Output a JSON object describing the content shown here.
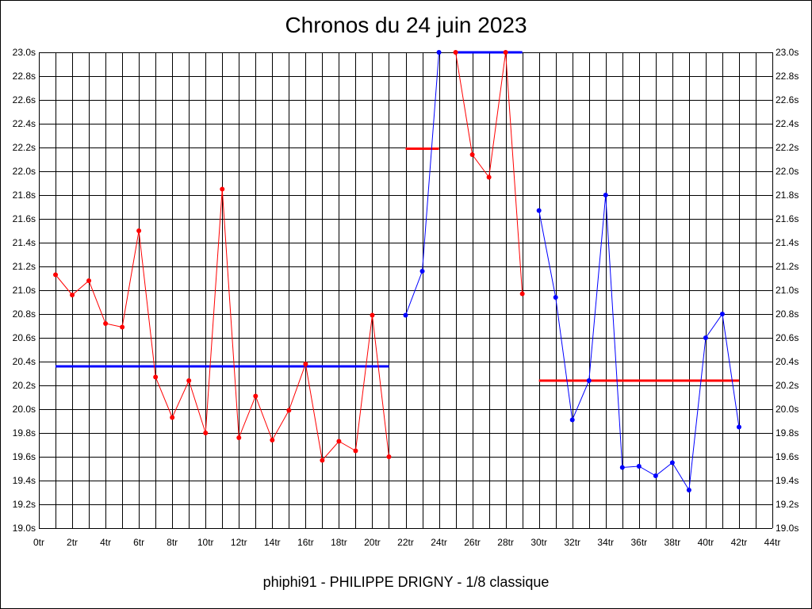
{
  "chart_data": {
    "type": "line",
    "title": "Chronos du 24 juin 2023",
    "subtitle": "phiphi91 - PHILIPPE DRIGNY - 1/8 classique",
    "xlabel": "",
    "ylabel": "",
    "xlim": [
      0,
      44
    ],
    "ylim": [
      19.0,
      23.0
    ],
    "grid": true,
    "x_ticks": [
      "0tr",
      "2tr",
      "4tr",
      "6tr",
      "8tr",
      "10tr",
      "12tr",
      "14tr",
      "16tr",
      "18tr",
      "20tr",
      "22tr",
      "24tr",
      "26tr",
      "28tr",
      "30tr",
      "32tr",
      "34tr",
      "36tr",
      "38tr",
      "40tr",
      "42tr",
      "44tr"
    ],
    "y_ticks": [
      "19.0s",
      "19.2s",
      "19.4s",
      "19.6s",
      "19.8s",
      "20.0s",
      "20.2s",
      "20.4s",
      "20.6s",
      "20.8s",
      "21.0s",
      "21.2s",
      "21.4s",
      "21.6s",
      "21.8s",
      "22.0s",
      "22.2s",
      "22.4s",
      "22.6s",
      "22.8s",
      "23.0s"
    ],
    "series": [
      {
        "color": "#ff0000",
        "points": [
          [
            1,
            21.13
          ],
          [
            2,
            20.96
          ],
          [
            3,
            21.08
          ],
          [
            4,
            20.72
          ],
          [
            5,
            20.69
          ],
          [
            6,
            21.5
          ],
          [
            7,
            20.27
          ],
          [
            8,
            19.93
          ],
          [
            9,
            20.24
          ],
          [
            10,
            19.8
          ],
          [
            11,
            21.85
          ],
          [
            12,
            19.76
          ],
          [
            13,
            20.11
          ],
          [
            14,
            19.74
          ],
          [
            15,
            19.99
          ],
          [
            16,
            20.38
          ],
          [
            17,
            19.57
          ],
          [
            18,
            19.73
          ],
          [
            19,
            19.65
          ],
          [
            20,
            20.79
          ],
          [
            21,
            19.6
          ]
        ]
      },
      {
        "color": "#0000ff",
        "points": [
          [
            22,
            20.79
          ],
          [
            23,
            21.16
          ],
          [
            24,
            23.0
          ]
        ]
      },
      {
        "color": "#ff0000",
        "points": [
          [
            25,
            23.0
          ],
          [
            26,
            22.14
          ],
          [
            27,
            21.95
          ],
          [
            28,
            23.0
          ],
          [
            29,
            20.97
          ]
        ]
      },
      {
        "color": "#0000ff",
        "points": [
          [
            30,
            21.67
          ],
          [
            31,
            20.94
          ],
          [
            32,
            19.91
          ],
          [
            33,
            20.24
          ],
          [
            34,
            21.8
          ],
          [
            35,
            19.51
          ],
          [
            36,
            19.52
          ],
          [
            37,
            19.44
          ],
          [
            38,
            19.55
          ],
          [
            39,
            19.32
          ],
          [
            40,
            20.6
          ],
          [
            41,
            20.8
          ],
          [
            42,
            19.85
          ]
        ]
      }
    ],
    "average_lines": [
      {
        "color": "#0000ff",
        "x": [
          1,
          21
        ],
        "y": 20.36
      },
      {
        "color": "#ff0000",
        "x": [
          22,
          24
        ],
        "y": 22.19
      },
      {
        "color": "#0000ff",
        "x": [
          25,
          29
        ],
        "y": 23.0
      },
      {
        "color": "#ff0000",
        "x": [
          30,
          42
        ],
        "y": 20.24
      }
    ]
  }
}
